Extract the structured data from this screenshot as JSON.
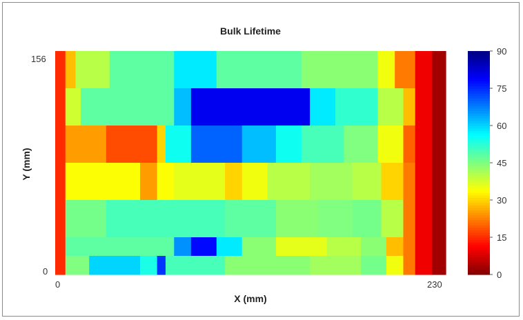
{
  "chart_data": {
    "type": "heatmap",
    "title": "Bulk Lifetime",
    "xlabel": "X (mm)",
    "ylabel": "Y (mm)",
    "xlim": [
      0,
      230
    ],
    "ylim": [
      0,
      156
    ],
    "x_ticks": [
      "0",
      "230"
    ],
    "y_ticks": [
      "0",
      "156"
    ],
    "colorbar": {
      "range": [
        0,
        90
      ],
      "ticks": [
        "0",
        "15",
        "30",
        "45",
        "60",
        "75",
        "90"
      ],
      "colormap": "jet_reversed"
    },
    "rows_top_to_bottom": [
      {
        "y_range": [
          130,
          156
        ],
        "segments": [
          [
            0,
            6,
            15
          ],
          [
            6,
            12,
            28
          ],
          [
            12,
            32,
            40
          ],
          [
            32,
            70,
            48
          ],
          [
            70,
            95,
            58
          ],
          [
            95,
            145,
            48
          ],
          [
            145,
            190,
            44
          ],
          [
            190,
            200,
            35
          ],
          [
            200,
            212,
            22
          ],
          [
            212,
            222,
            10
          ],
          [
            222,
            230,
            3
          ]
        ]
      },
      {
        "y_range": [
          104,
          130
        ],
        "segments": [
          [
            0,
            6,
            15
          ],
          [
            6,
            15,
            38
          ],
          [
            15,
            70,
            48
          ],
          [
            70,
            80,
            62
          ],
          [
            80,
            115,
            80
          ],
          [
            115,
            150,
            80
          ],
          [
            150,
            165,
            58
          ],
          [
            165,
            190,
            52
          ],
          [
            190,
            205,
            40
          ],
          [
            205,
            212,
            28
          ],
          [
            212,
            222,
            10
          ],
          [
            222,
            230,
            3
          ]
        ]
      },
      {
        "y_range": [
          78,
          104
        ],
        "segments": [
          [
            0,
            6,
            15
          ],
          [
            6,
            30,
            25
          ],
          [
            30,
            60,
            18
          ],
          [
            60,
            65,
            30
          ],
          [
            65,
            80,
            55
          ],
          [
            80,
            110,
            70
          ],
          [
            110,
            130,
            62
          ],
          [
            130,
            145,
            55
          ],
          [
            145,
            170,
            50
          ],
          [
            170,
            190,
            45
          ],
          [
            190,
            205,
            35
          ],
          [
            205,
            212,
            20
          ],
          [
            212,
            222,
            10
          ],
          [
            222,
            230,
            3
          ]
        ]
      },
      {
        "y_range": [
          52,
          78
        ],
        "segments": [
          [
            0,
            6,
            15
          ],
          [
            6,
            50,
            34
          ],
          [
            50,
            60,
            25
          ],
          [
            60,
            70,
            34
          ],
          [
            70,
            100,
            36
          ],
          [
            100,
            110,
            30
          ],
          [
            110,
            125,
            35
          ],
          [
            125,
            150,
            40
          ],
          [
            150,
            175,
            42
          ],
          [
            175,
            192,
            40
          ],
          [
            192,
            205,
            30
          ],
          [
            205,
            212,
            22
          ],
          [
            212,
            222,
            10
          ],
          [
            222,
            230,
            3
          ]
        ]
      },
      {
        "y_range": [
          26,
          52
        ],
        "segments": [
          [
            0,
            6,
            15
          ],
          [
            6,
            30,
            46
          ],
          [
            30,
            100,
            50
          ],
          [
            100,
            130,
            48
          ],
          [
            130,
            155,
            44
          ],
          [
            155,
            175,
            45
          ],
          [
            175,
            192,
            46
          ],
          [
            192,
            205,
            40
          ],
          [
            205,
            212,
            22
          ],
          [
            212,
            222,
            10
          ],
          [
            222,
            230,
            3
          ]
        ]
      },
      {
        "y_range": [
          13,
          26
        ],
        "segments": [
          [
            0,
            6,
            15
          ],
          [
            6,
            70,
            48
          ],
          [
            70,
            80,
            66
          ],
          [
            80,
            95,
            78
          ],
          [
            95,
            110,
            58
          ],
          [
            110,
            130,
            44
          ],
          [
            130,
            160,
            36
          ],
          [
            160,
            180,
            40
          ],
          [
            180,
            195,
            44
          ],
          [
            195,
            205,
            28
          ],
          [
            205,
            212,
            22
          ],
          [
            212,
            222,
            10
          ],
          [
            222,
            230,
            3
          ]
        ]
      },
      {
        "y_range": [
          0,
          13
        ],
        "segments": [
          [
            0,
            6,
            15
          ],
          [
            6,
            20,
            45
          ],
          [
            20,
            50,
            60
          ],
          [
            50,
            60,
            54
          ],
          [
            60,
            65,
            74
          ],
          [
            65,
            100,
            50
          ],
          [
            100,
            150,
            44
          ],
          [
            150,
            180,
            42
          ],
          [
            180,
            195,
            46
          ],
          [
            195,
            205,
            35
          ],
          [
            205,
            212,
            22
          ],
          [
            212,
            222,
            10
          ],
          [
            222,
            230,
            3
          ]
        ]
      }
    ]
  }
}
